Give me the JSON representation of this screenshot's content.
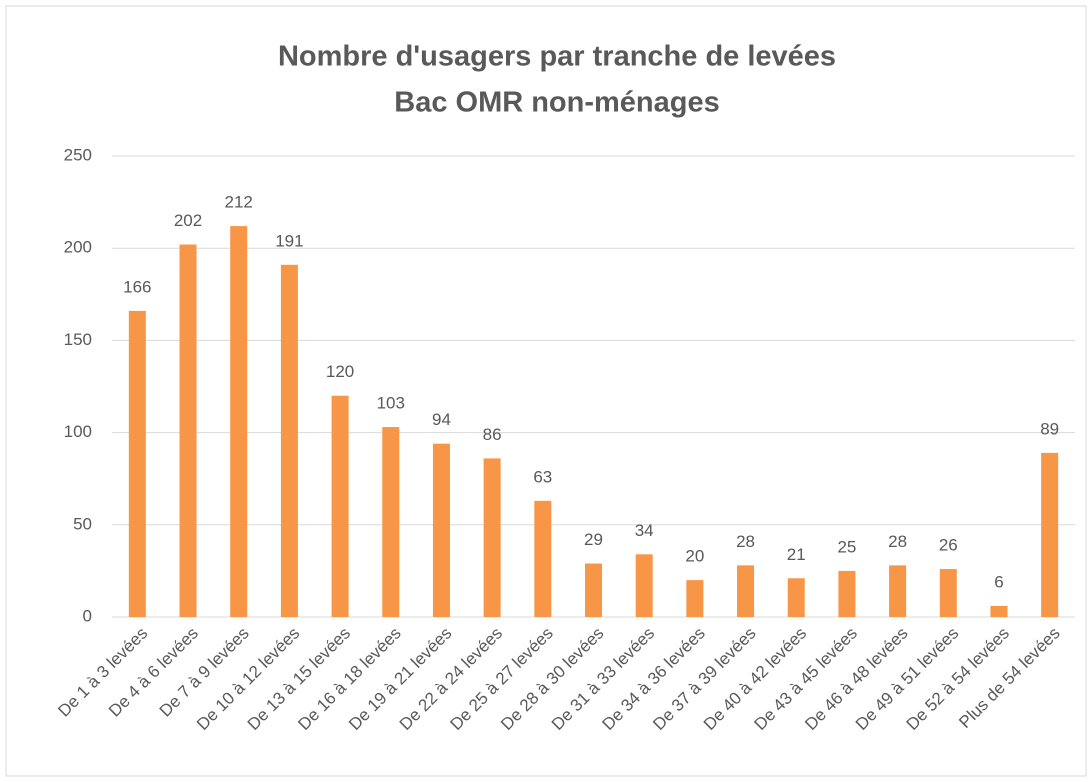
{
  "chart_data": {
    "type": "bar",
    "title": "Nombre d'usagers par tranche de levées",
    "subtitle": "Bac OMR non-ménages",
    "categories": [
      "De 1 à 3 levées",
      "De 4 à 6 levées",
      "De 7 à 9 levées",
      "De 10 à 12 levées",
      "De 13 à 15 levées",
      "De 16 à 18 levées",
      "De 19 à 21 levées",
      "De 22 à 24 levées",
      "De 25 à 27 levées",
      "De 28 à 30 levées",
      "De 31 à 33 levées",
      "De 34 à 36 levées",
      "De 37 à 39 levées",
      "De 40 à 42 levées",
      "De 43 à 45 levées",
      "De 46 à 48 levées",
      "De 49 à 51 levées",
      "De 52 à 54 levées",
      "Plus de 54 levées"
    ],
    "values": [
      166,
      202,
      212,
      191,
      120,
      103,
      94,
      86,
      63,
      29,
      34,
      20,
      28,
      21,
      25,
      28,
      26,
      6,
      89
    ],
    "color": "#f79646",
    "ylim": [
      0,
      250
    ],
    "yticks": [
      0,
      50,
      100,
      150,
      200,
      250
    ],
    "grid": true
  }
}
